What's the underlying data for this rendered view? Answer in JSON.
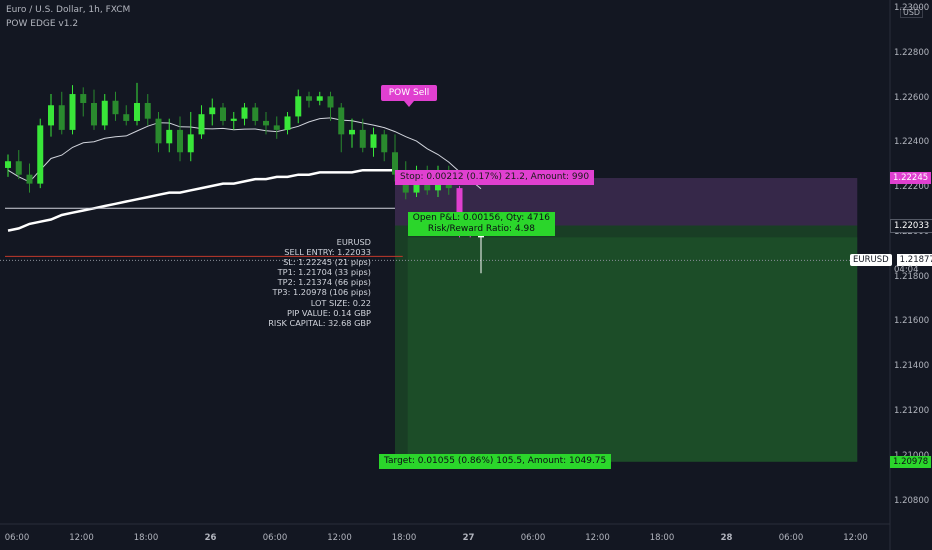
{
  "header": {
    "symbol_title": "Euro / U.S. Dollar, 1h, FXCM",
    "indicator_name": "POW EDGE v1.2"
  },
  "price_axis": {
    "currency": "USD",
    "ticks": [
      "1.23000",
      "1.22800",
      "1.22600",
      "1.22400",
      "1.22200",
      "1.22000",
      "1.21800",
      "1.21600",
      "1.21400",
      "1.21200",
      "1.21000",
      "1.20800"
    ],
    "range": [
      1.207,
      1.2304
    ]
  },
  "price_tags": {
    "stop": "1.22245",
    "entry": "1.22033",
    "target": "1.20978",
    "current_symbol": "EURUSD",
    "current_price": "1.21877",
    "countdown": "04:04"
  },
  "time_axis": {
    "ticks": [
      "06:00",
      "12:00",
      "18:00",
      "26",
      "06:00",
      "12:00",
      "18:00",
      "27",
      "06:00",
      "12:00",
      "18:00",
      "28",
      "06:00",
      "12:00"
    ]
  },
  "signal_label": "POW Sell",
  "position": {
    "stop_label": "Stop: 0.00212 (0.17%) 21.2, Amount: 990",
    "pnl_line1": "Open P&L: 0.00156, Qty: 4716",
    "pnl_line2": "Risk/Reward Ratio: 4.98",
    "target_label": "Target: 0.01055 (0.86%) 105.5, Amount: 1049.75",
    "stop_price": 1.22245,
    "entry_price": 1.22033,
    "target_price": 1.20978,
    "start_bar": 36,
    "end_bar": 79
  },
  "info_block": [
    "EURUSD",
    "SELL ENTRY: 1.22033",
    "SL: 1.22245 (21 pips)",
    "TP1: 1.21704 (33 pips)",
    "TP2: 1.21374 (66 pips)",
    "TP3: 1.20978 (106 pips)",
    "LOT SIZE: 0.22",
    "PIP VALUE: 0.14 GBP",
    "RISK CAPITAL: 32.68 GBP"
  ],
  "colors": {
    "background": "#131722",
    "bull": "#39e639",
    "bear": "#2a8a2e",
    "signal": "#e040d0",
    "stop_zone": "#3b2a4e",
    "target_zone": "#1b4326",
    "target_tag": "#2bd62b"
  },
  "chart_data": {
    "type": "candlestick",
    "symbol": "EURUSD",
    "timeframe": "1h",
    "ylim": [
      1.207,
      1.2304
    ],
    "candles": [
      {
        "o": 1.2229,
        "h": 1.2235,
        "l": 1.2225,
        "c": 1.2232
      },
      {
        "o": 1.2232,
        "h": 1.2237,
        "l": 1.2224,
        "c": 1.2226
      },
      {
        "o": 1.2226,
        "h": 1.2231,
        "l": 1.2218,
        "c": 1.2222
      },
      {
        "o": 1.2222,
        "h": 1.2251,
        "l": 1.222,
        "c": 1.2248
      },
      {
        "o": 1.2248,
        "h": 1.2262,
        "l": 1.2243,
        "c": 1.2257
      },
      {
        "o": 1.2257,
        "h": 1.2263,
        "l": 1.2244,
        "c": 1.2246
      },
      {
        "o": 1.2246,
        "h": 1.2266,
        "l": 1.2244,
        "c": 1.2262
      },
      {
        "o": 1.2262,
        "h": 1.2265,
        "l": 1.2252,
        "c": 1.2258
      },
      {
        "o": 1.2258,
        "h": 1.2264,
        "l": 1.2246,
        "c": 1.2248
      },
      {
        "o": 1.2248,
        "h": 1.2262,
        "l": 1.2246,
        "c": 1.2259
      },
      {
        "o": 1.2259,
        "h": 1.2263,
        "l": 1.225,
        "c": 1.2253
      },
      {
        "o": 1.2253,
        "h": 1.2257,
        "l": 1.2248,
        "c": 1.225
      },
      {
        "o": 1.225,
        "h": 1.2267,
        "l": 1.2248,
        "c": 1.2258
      },
      {
        "o": 1.2258,
        "h": 1.2262,
        "l": 1.2248,
        "c": 1.2251
      },
      {
        "o": 1.2251,
        "h": 1.2254,
        "l": 1.2236,
        "c": 1.224
      },
      {
        "o": 1.224,
        "h": 1.2251,
        "l": 1.2236,
        "c": 1.2246
      },
      {
        "o": 1.2246,
        "h": 1.2252,
        "l": 1.2232,
        "c": 1.2236
      },
      {
        "o": 1.2236,
        "h": 1.2254,
        "l": 1.2232,
        "c": 1.2244
      },
      {
        "o": 1.2244,
        "h": 1.2257,
        "l": 1.2242,
        "c": 1.2253
      },
      {
        "o": 1.2253,
        "h": 1.226,
        "l": 1.2248,
        "c": 1.2256
      },
      {
        "o": 1.2256,
        "h": 1.2258,
        "l": 1.2248,
        "c": 1.225
      },
      {
        "o": 1.225,
        "h": 1.2254,
        "l": 1.2246,
        "c": 1.2251
      },
      {
        "o": 1.2251,
        "h": 1.2258,
        "l": 1.2248,
        "c": 1.2256
      },
      {
        "o": 1.2256,
        "h": 1.2258,
        "l": 1.2248,
        "c": 1.225
      },
      {
        "o": 1.225,
        "h": 1.2254,
        "l": 1.2244,
        "c": 1.2248
      },
      {
        "o": 1.2248,
        "h": 1.2252,
        "l": 1.2242,
        "c": 1.2246
      },
      {
        "o": 1.2246,
        "h": 1.2254,
        "l": 1.2244,
        "c": 1.2252
      },
      {
        "o": 1.2252,
        "h": 1.2264,
        "l": 1.2249,
        "c": 1.2261
      },
      {
        "o": 1.2261,
        "h": 1.2263,
        "l": 1.2256,
        "c": 1.2259
      },
      {
        "o": 1.2259,
        "h": 1.2263,
        "l": 1.2257,
        "c": 1.2261
      },
      {
        "o": 1.2261,
        "h": 1.2263,
        "l": 1.225,
        "c": 1.2256
      },
      {
        "o": 1.2256,
        "h": 1.2258,
        "l": 1.2236,
        "c": 1.2244
      },
      {
        "o": 1.2244,
        "h": 1.2251,
        "l": 1.2238,
        "c": 1.2246
      },
      {
        "o": 1.2246,
        "h": 1.2251,
        "l": 1.2236,
        "c": 1.2238
      },
      {
        "o": 1.2238,
        "h": 1.2247,
        "l": 1.2234,
        "c": 1.2244
      },
      {
        "o": 1.2244,
        "h": 1.2246,
        "l": 1.2232,
        "c": 1.2236
      },
      {
        "o": 1.2236,
        "h": 1.2244,
        "l": 1.2223,
        "c": 1.2226
      },
      {
        "o": 1.2226,
        "h": 1.2232,
        "l": 1.2215,
        "c": 1.2218
      },
      {
        "o": 1.2218,
        "h": 1.223,
        "l": 1.2216,
        "c": 1.2228
      },
      {
        "o": 1.2228,
        "h": 1.223,
        "l": 1.2217,
        "c": 1.2219
      },
      {
        "o": 1.2219,
        "h": 1.223,
        "l": 1.2216,
        "c": 1.2228
      },
      {
        "o": 1.2228,
        "h": 1.223,
        "l": 1.2217,
        "c": 1.222
      },
      {
        "o": 1.222,
        "h": 1.2221,
        "l": 1.2198,
        "c": 1.2203
      },
      {
        "o": 1.2203,
        "h": 1.2205,
        "l": 1.2198,
        "c": 1.22
      },
      {
        "o": 1.22,
        "h": 1.2204,
        "l": 1.2182,
        "c": 1.2198
      }
    ]
  }
}
